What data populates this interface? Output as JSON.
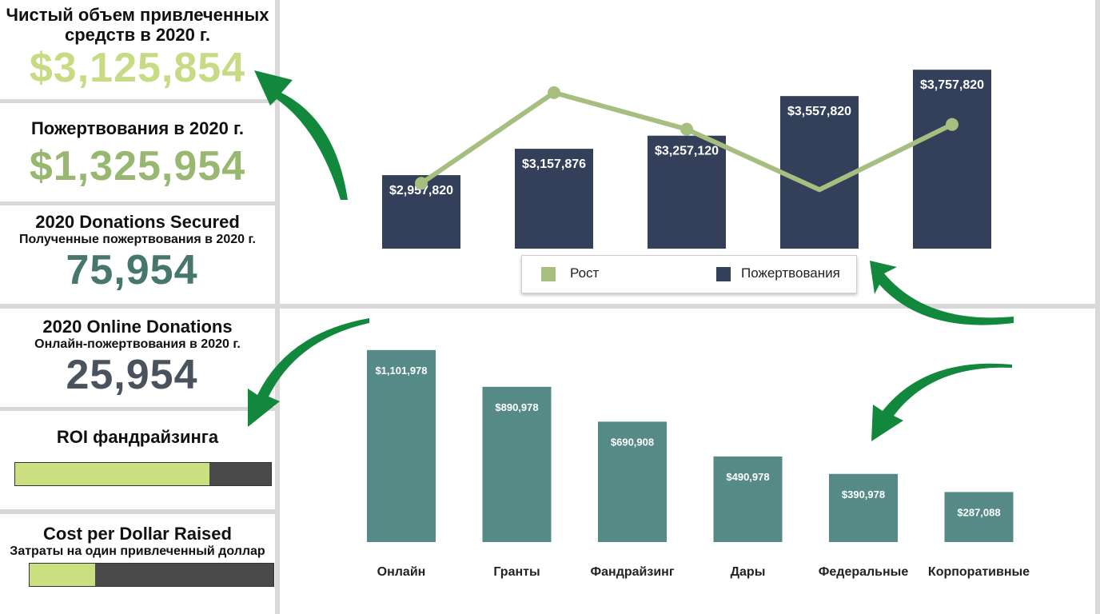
{
  "kpis": {
    "net_funds": {
      "title": "Чистый объем привлеченных средств в 2020 г.",
      "title_line1": "Чистый объем привлеченных",
      "title_line2": "средств в 2020 г.",
      "value": "$3,125,854"
    },
    "donations": {
      "title": "Пожертвования в 2020 г.",
      "value": "$1,325,954"
    },
    "donations_secured": {
      "title": "2020 Donations Secured",
      "subtitle": "Полученные пожертвования в 2020 г.",
      "value": "75,954"
    },
    "online_donations": {
      "title": "2020 Online Donations",
      "subtitle": "Онлайн-пожертвования в 2020 г.",
      "value": "25,954"
    },
    "roi": {
      "title": "ROI фандрайзинга",
      "fill_fraction": 0.76
    },
    "cost_per_dollar": {
      "title": "Cost per Dollar Raised",
      "subtitle": "Затраты на один привлеченный доллар",
      "fill_fraction": 0.27
    }
  },
  "colors": {
    "navy_bar": "#343f5a",
    "growth_line": "#a6be80",
    "teal_bar": "#568a87",
    "kpi_light_green": "#c7db85",
    "kpi_mid_green": "#98b872",
    "kpi_teal": "#47766d",
    "kpi_slate": "#4a525e",
    "arrow_green": "#11883c",
    "roi_fill": "#c9df80"
  },
  "chart_data": [
    {
      "type": "bar",
      "categories": [
        "",
        "",
        "",
        "",
        ""
      ],
      "series": [
        {
          "name": "Пожертвования",
          "values": [
            2957820,
            3157876,
            3257120,
            3557820,
            3757820
          ]
        },
        {
          "name": "Рост",
          "type": "line",
          "values": [
            0.31,
            0.88,
            0.65,
            0.27,
            0.68
          ]
        }
      ],
      "data_labels": [
        "$2,957,820",
        "$3,157,876",
        "$3,257,120",
        "$3,557,820",
        "$3,757,820"
      ],
      "legend": {
        "position": "bottom",
        "entries": [
          "Рост",
          "Пожертвования"
        ]
      },
      "ylim": [
        2400000,
        3850000
      ],
      "grid": false
    },
    {
      "type": "bar",
      "categories": [
        "Онлайн",
        "Гранты",
        "Фандрайзинг",
        "Дары",
        "Федеральные",
        "Корпоративные"
      ],
      "values": [
        1101978,
        890978,
        690908,
        490978,
        390978,
        287088
      ],
      "data_labels": [
        "$1,101,978",
        "$890,978",
        "$690,908",
        "$490,978",
        "$390,978",
        "$287,088"
      ],
      "ylim": [
        0,
        1170000
      ],
      "grid": false
    }
  ]
}
